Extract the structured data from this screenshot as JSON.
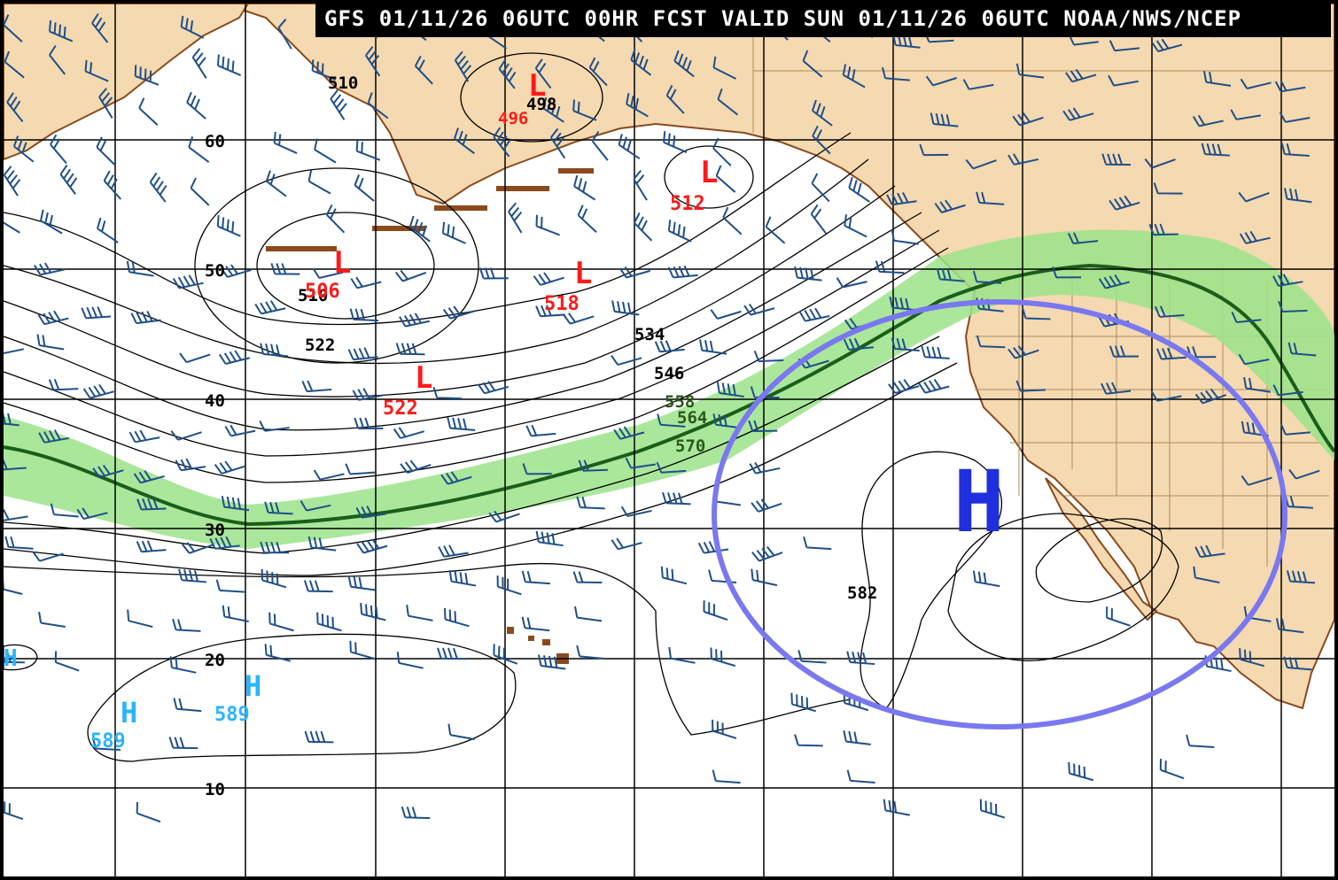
{
  "header": {
    "title": "GFS 01/11/26 06UTC 00HR FCST VALID SUN 01/11/26 06UTC NOAA/NWS/NCEP"
  },
  "latitude_labels": [
    "60",
    "50",
    "40",
    "30",
    "20",
    "10"
  ],
  "contour_labels": [
    "510",
    "510",
    "522",
    "534",
    "546",
    "558",
    "564",
    "570",
    "582"
  ],
  "low_centers": [
    {
      "letter": "L",
      "value": "498",
      "value_color_text": "496"
    },
    {
      "letter": "L",
      "value": "512"
    },
    {
      "letter": "L",
      "value": "506"
    },
    {
      "letter": "L",
      "value": "518"
    },
    {
      "letter": "L",
      "value": "522"
    }
  ],
  "high_centers": [
    {
      "letter": "H",
      "value": "589"
    },
    {
      "letter": "H",
      "value": "589"
    }
  ],
  "annotation": {
    "major_high": "H"
  },
  "colors": {
    "land": "#f5d9b0",
    "coast": "#8b4a1c",
    "ocean": "#ffffff",
    "grid": "#000000",
    "contour": "#000000",
    "wind_barb": "#1f4f8a",
    "jet_fill": "#9be38a",
    "jet_line": "#1a5e1a",
    "low_label": "#ff1a1a",
    "high_label": "#2ab4ff",
    "major_high": "#1f2fe0",
    "high_ellipse": "#7a78f0"
  }
}
